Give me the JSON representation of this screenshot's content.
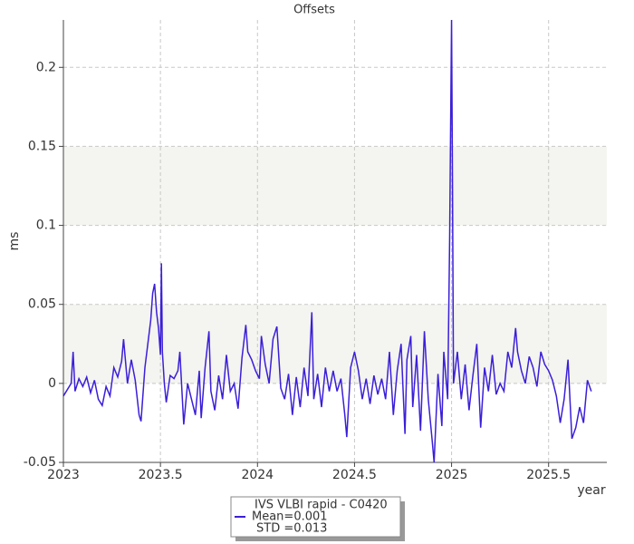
{
  "chart_data": {
    "type": "line",
    "title": "Offsets",
    "x_label": "year",
    "y_label": "ms",
    "x": [
      2023.0,
      2023.02,
      2023.04,
      2023.05,
      2023.06,
      2023.08,
      2023.1,
      2023.12,
      2023.14,
      2023.16,
      2023.18,
      2023.2,
      2023.22,
      2023.24,
      2023.26,
      2023.28,
      2023.3,
      2023.31,
      2023.33,
      2023.35,
      2023.37,
      2023.39,
      2023.4,
      2023.42,
      2023.44,
      2023.45,
      2023.46,
      2023.47,
      2023.48,
      2023.49,
      2023.5,
      2023.505,
      2023.51,
      2023.52,
      2023.53,
      2023.55,
      2023.57,
      2023.59,
      2023.6,
      2023.62,
      2023.64,
      2023.66,
      2023.68,
      2023.7,
      2023.71,
      2023.73,
      2023.75,
      2023.76,
      2023.78,
      2023.8,
      2023.82,
      2023.84,
      2023.86,
      2023.88,
      2023.9,
      2023.92,
      2023.94,
      2023.95,
      2023.97,
      2023.99,
      2024.01,
      2024.02,
      2024.04,
      2024.06,
      2024.08,
      2024.1,
      2024.12,
      2024.14,
      2024.16,
      2024.18,
      2024.2,
      2024.22,
      2024.24,
      2024.26,
      2024.28,
      2024.29,
      2024.31,
      2024.33,
      2024.35,
      2024.37,
      2024.39,
      2024.41,
      2024.43,
      2024.45,
      2024.46,
      2024.48,
      2024.5,
      2024.52,
      2024.54,
      2024.56,
      2024.58,
      2024.6,
      2024.62,
      2024.64,
      2024.66,
      2024.68,
      2024.7,
      2024.72,
      2024.74,
      2024.76,
      2024.77,
      2024.79,
      2024.8,
      2024.82,
      2024.84,
      2024.86,
      2024.88,
      2024.9,
      2024.91,
      2024.93,
      2024.95,
      2024.96,
      2024.98,
      2024.99,
      2025.0,
      2025.005,
      2025.01,
      2025.03,
      2025.05,
      2025.07,
      2025.09,
      2025.11,
      2025.13,
      2025.15,
      2025.17,
      2025.19,
      2025.21,
      2025.23,
      2025.25,
      2025.27,
      2025.29,
      2025.31,
      2025.33,
      2025.34,
      2025.36,
      2025.38,
      2025.4,
      2025.42,
      2025.44,
      2025.46,
      2025.48,
      2025.5,
      2025.52,
      2025.54,
      2025.56,
      2025.58,
      2025.6,
      2025.62,
      2025.64,
      2025.66,
      2025.68,
      2025.7,
      2025.72
    ],
    "series": [
      {
        "name": "IVS VLBI rapid - C0420",
        "color": "#3a1fd8",
        "values": [
          -0.008,
          -0.004,
          0.0,
          0.02,
          -0.005,
          0.003,
          -0.002,
          0.004,
          -0.006,
          0.002,
          -0.01,
          -0.014,
          -0.002,
          -0.008,
          0.01,
          0.004,
          0.014,
          0.028,
          0.0,
          0.015,
          0.002,
          -0.02,
          -0.024,
          0.01,
          0.03,
          0.04,
          0.057,
          0.063,
          0.045,
          0.035,
          0.018,
          0.076,
          0.02,
          0.0,
          -0.012,
          0.005,
          0.003,
          0.008,
          0.02,
          -0.026,
          0.0,
          -0.01,
          -0.02,
          0.008,
          -0.022,
          0.01,
          0.033,
          -0.005,
          -0.017,
          0.005,
          -0.01,
          0.018,
          -0.005,
          0.0,
          -0.016,
          0.016,
          0.037,
          0.02,
          0.015,
          0.008,
          0.003,
          0.03,
          0.012,
          0.0,
          0.028,
          0.036,
          -0.003,
          -0.01,
          0.006,
          -0.02,
          0.004,
          -0.015,
          0.01,
          -0.008,
          0.045,
          -0.01,
          0.006,
          -0.015,
          0.01,
          -0.005,
          0.008,
          -0.005,
          0.003,
          -0.02,
          -0.034,
          0.01,
          0.02,
          0.008,
          -0.01,
          0.003,
          -0.013,
          0.005,
          -0.007,
          0.003,
          -0.01,
          0.02,
          -0.02,
          0.008,
          0.025,
          -0.032,
          0.015,
          0.03,
          -0.015,
          0.018,
          -0.03,
          0.033,
          -0.01,
          -0.036,
          -0.05,
          0.006,
          -0.027,
          0.02,
          -0.01,
          0.09,
          0.23,
          0.12,
          0.0,
          0.02,
          -0.01,
          0.012,
          -0.017,
          0.005,
          0.025,
          -0.028,
          0.01,
          -0.005,
          0.018,
          -0.007,
          0.0,
          -0.005,
          0.02,
          0.01,
          0.035,
          0.02,
          0.008,
          0.0,
          0.017,
          0.01,
          -0.002,
          0.02,
          0.012,
          0.008,
          0.002,
          -0.008,
          -0.025,
          -0.01,
          0.015,
          -0.035,
          -0.028,
          -0.015,
          -0.025,
          0.002,
          -0.005
        ]
      }
    ],
    "legend_lines": [
      "Mean=0.001",
      "STD =0.013"
    ],
    "xlim": [
      2023,
      2025.8
    ],
    "xticks": [
      2023,
      2023.5,
      2024,
      2024.5,
      2025,
      2025.5
    ],
    "ylim": [
      -0.05,
      0.23
    ],
    "yticks": [
      -0.05,
      0,
      0.05,
      0.1,
      0.15,
      0.2
    ],
    "grid": true,
    "band_color": "#f4f4f0"
  }
}
